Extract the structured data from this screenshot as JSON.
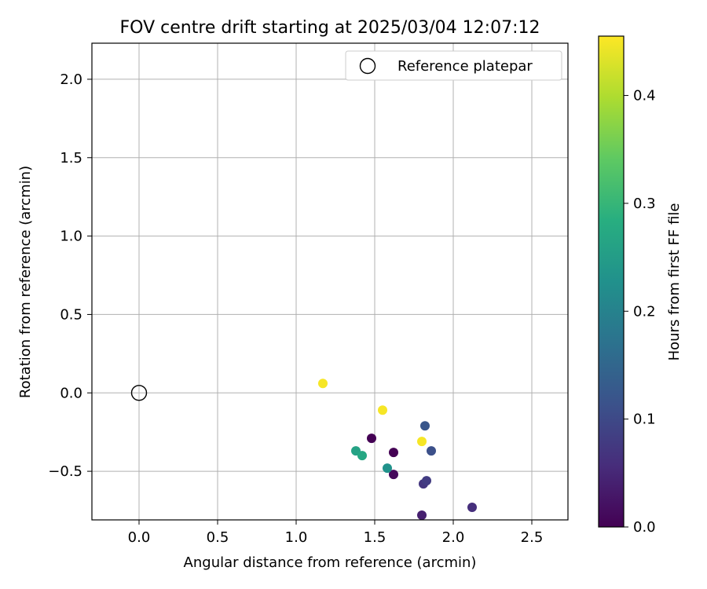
{
  "chart_data": {
    "type": "scatter",
    "title": "FOV centre drift starting at 2025/03/04 12:07:12",
    "xlabel": "Angular distance from reference (arcmin)",
    "ylabel": "Rotation from reference (arcmin)",
    "xlim": [
      -0.3,
      2.73
    ],
    "ylim": [
      -0.81,
      2.23
    ],
    "xticks": [
      0.0,
      0.5,
      1.0,
      1.5,
      2.0,
      2.5
    ],
    "xtick_labels": [
      "0.0",
      "0.5",
      "1.0",
      "1.5",
      "2.0",
      "2.5"
    ],
    "yticks": [
      -0.5,
      0.0,
      0.5,
      1.0,
      1.5,
      2.0
    ],
    "ytick_labels": [
      "−0.5",
      "0.0",
      "0.5",
      "1.0",
      "1.5",
      "2.0"
    ],
    "grid": true,
    "legend": {
      "position": "top-right",
      "entries": [
        "Reference platepar"
      ]
    },
    "reference_point": {
      "x": 0.0,
      "y": 0.0,
      "marker": "open-circle",
      "label": "Reference platepar"
    },
    "colorbar": {
      "label": "Hours from first FF file",
      "colormap": "viridis",
      "range": [
        0.0,
        0.455
      ],
      "ticks": [
        0.0,
        0.1,
        0.2,
        0.3,
        0.4
      ],
      "tick_labels": [
        "0.0",
        "0.1",
        "0.2",
        "0.3",
        "0.4"
      ]
    },
    "points": [
      {
        "x": 1.48,
        "y": -0.29,
        "hours": 0.0
      },
      {
        "x": 1.62,
        "y": -0.38,
        "hours": 0.0
      },
      {
        "x": 1.62,
        "y": -0.52,
        "hours": 0.01
      },
      {
        "x": 1.8,
        "y": -0.78,
        "hours": 0.04
      },
      {
        "x": 2.12,
        "y": -0.73,
        "hours": 0.06
      },
      {
        "x": 1.81,
        "y": -0.58,
        "hours": 0.07
      },
      {
        "x": 1.83,
        "y": -0.56,
        "hours": 0.08
      },
      {
        "x": 1.86,
        "y": -0.37,
        "hours": 0.11
      },
      {
        "x": 1.82,
        "y": -0.21,
        "hours": 0.12
      },
      {
        "x": 1.58,
        "y": -0.48,
        "hours": 0.23
      },
      {
        "x": 1.38,
        "y": -0.37,
        "hours": 0.26
      },
      {
        "x": 1.42,
        "y": -0.4,
        "hours": 0.27
      },
      {
        "x": 1.17,
        "y": 0.06,
        "hours": 0.45
      },
      {
        "x": 1.55,
        "y": -0.11,
        "hours": 0.45
      },
      {
        "x": 1.8,
        "y": -0.31,
        "hours": 0.45
      }
    ]
  }
}
